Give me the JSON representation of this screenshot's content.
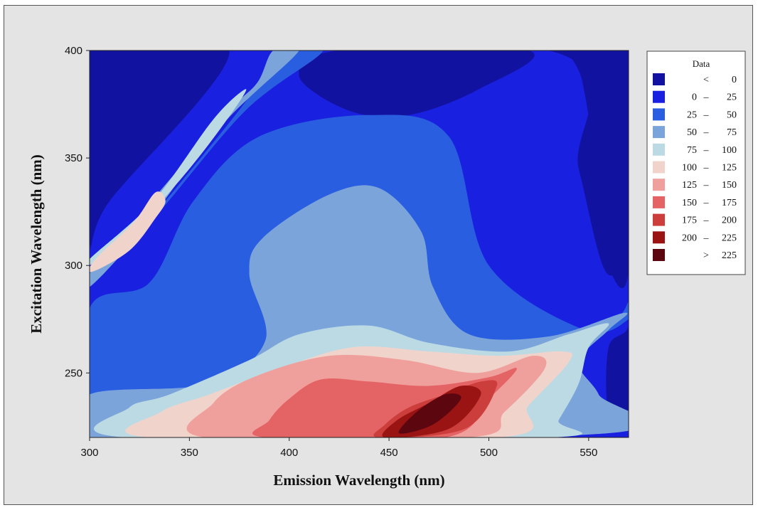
{
  "chart_data": {
    "type": "contour",
    "xlabel": "Emission Wavelength (nm)",
    "ylabel": "Excitation Wavelength (nm)",
    "xlim": [
      300,
      570
    ],
    "ylim": [
      220,
      400
    ],
    "x_ticks": [
      300,
      350,
      400,
      450,
      500,
      550
    ],
    "y_ticks": [
      250,
      300,
      350,
      400
    ],
    "legend": {
      "title": "Data",
      "placement": "right",
      "levels": [
        {
          "label": "<",
          "low": "",
          "high": "0",
          "color": "#1212a0"
        },
        {
          "label": "–",
          "low": "0",
          "high": "25",
          "color": "#1a20e0"
        },
        {
          "label": "–",
          "low": "25",
          "high": "50",
          "color": "#2a5ee0"
        },
        {
          "label": "–",
          "low": "50",
          "high": "75",
          "color": "#7ba5da"
        },
        {
          "label": "–",
          "low": "75",
          "high": "100",
          "color": "#bcdae4"
        },
        {
          "label": "–",
          "low": "100",
          "high": "125",
          "color": "#f0d4cc"
        },
        {
          "label": "–",
          "low": "125",
          "high": "150",
          "color": "#f0a09c"
        },
        {
          "label": "–",
          "low": "150",
          "high": "175",
          "color": "#e46466"
        },
        {
          "label": "–",
          "low": "175",
          "high": "200",
          "color": "#cc3e3c"
        },
        {
          "label": "–",
          "low": "200",
          "high": "225",
          "color": "#9a1414"
        },
        {
          "label": ">",
          "low": "",
          "high": "225",
          "color": "#5c0610"
        }
      ]
    },
    "peaks": [
      {
        "x": 470,
        "y": 232,
        "value": 230
      },
      {
        "x": 430,
        "y": 232,
        "value": 165
      },
      {
        "x": 335,
        "y": 335,
        "value": 110
      }
    ]
  }
}
